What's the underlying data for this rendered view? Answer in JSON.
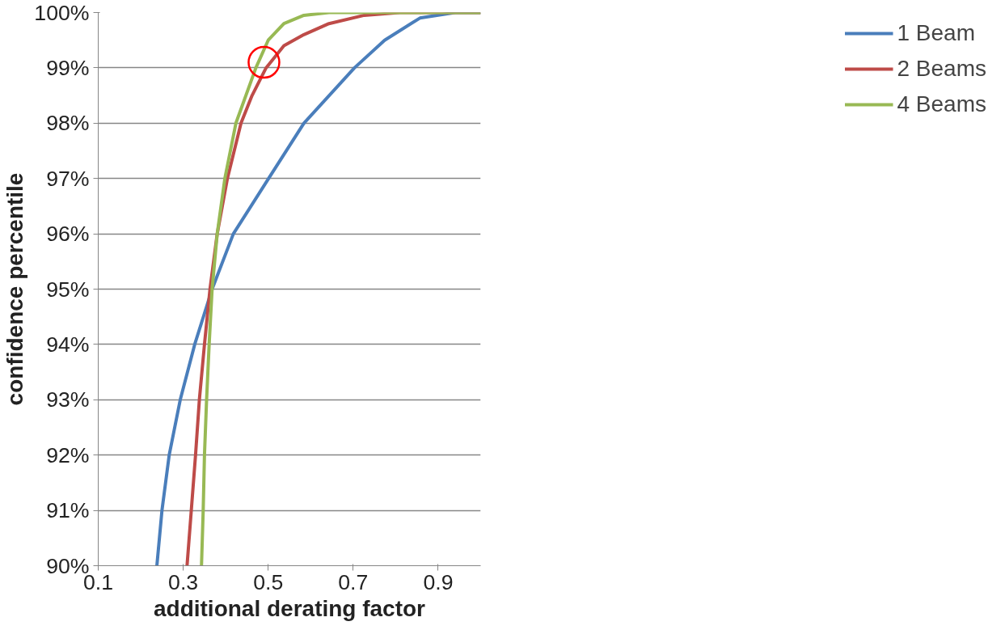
{
  "chart_data": {
    "type": "line",
    "xlabel": "additional derating factor",
    "ylabel": "confidence percentile",
    "xlim": [
      0.1,
      1.0
    ],
    "xticks": [
      0.1,
      0.3,
      0.5,
      0.7,
      0.9
    ],
    "ylim": [
      90,
      100
    ],
    "yticks": [
      {
        "value": 90,
        "label": "90%"
      },
      {
        "value": 91,
        "label": "91%"
      },
      {
        "value": 92,
        "label": "92%"
      },
      {
        "value": 93,
        "label": "93%"
      },
      {
        "value": 94,
        "label": "94%"
      },
      {
        "value": 95,
        "label": "95%"
      },
      {
        "value": 96,
        "label": "96%"
      },
      {
        "value": 97,
        "label": "97%"
      },
      {
        "value": 98,
        "label": "98%"
      },
      {
        "value": 99,
        "label": "99%"
      },
      {
        "value": 100,
        "label": "100%"
      }
    ],
    "grid": "y",
    "legend": "right",
    "marker": "none",
    "line_style": "solid",
    "series": [
      {
        "name": "1 Beam",
        "color": "#4a7ebb",
        "x": [
          0.238,
          0.25,
          0.267,
          0.293,
          0.327,
          0.368,
          0.418,
          0.501,
          0.584,
          0.703,
          0.774,
          0.857,
          0.94,
          1.0
        ],
        "values": [
          90,
          91,
          92,
          93,
          94,
          95,
          96,
          97,
          98,
          99,
          99.5,
          99.9,
          100,
          100
        ]
      },
      {
        "name": "2 Beams",
        "color": "#be4b48",
        "x": [
          0.309,
          0.319,
          0.329,
          0.338,
          0.35,
          0.363,
          0.38,
          0.404,
          0.436,
          0.462,
          0.495,
          0.537,
          0.584,
          0.643,
          0.726,
          0.81,
          1.0
        ],
        "values": [
          90,
          91,
          92,
          93,
          94,
          95,
          96,
          97,
          98,
          98.5,
          99,
          99.4,
          99.6,
          99.8,
          99.95,
          100,
          100
        ]
      },
      {
        "name": "4 Beams",
        "color": "#98b954",
        "x": [
          0.343,
          0.347,
          0.35,
          0.355,
          0.361,
          0.368,
          0.38,
          0.398,
          0.424,
          0.471,
          0.5,
          0.537,
          0.584,
          0.643,
          1.0
        ],
        "values": [
          90,
          91,
          92,
          93,
          94,
          95,
          96,
          97,
          98,
          99,
          99.5,
          99.8,
          99.95,
          100,
          100
        ]
      },
      {
        "type": "scatter",
        "marker": "circle",
        "color": "#ff0000",
        "x": [
          0.49
        ],
        "values": [
          99.1
        ]
      }
    ]
  }
}
